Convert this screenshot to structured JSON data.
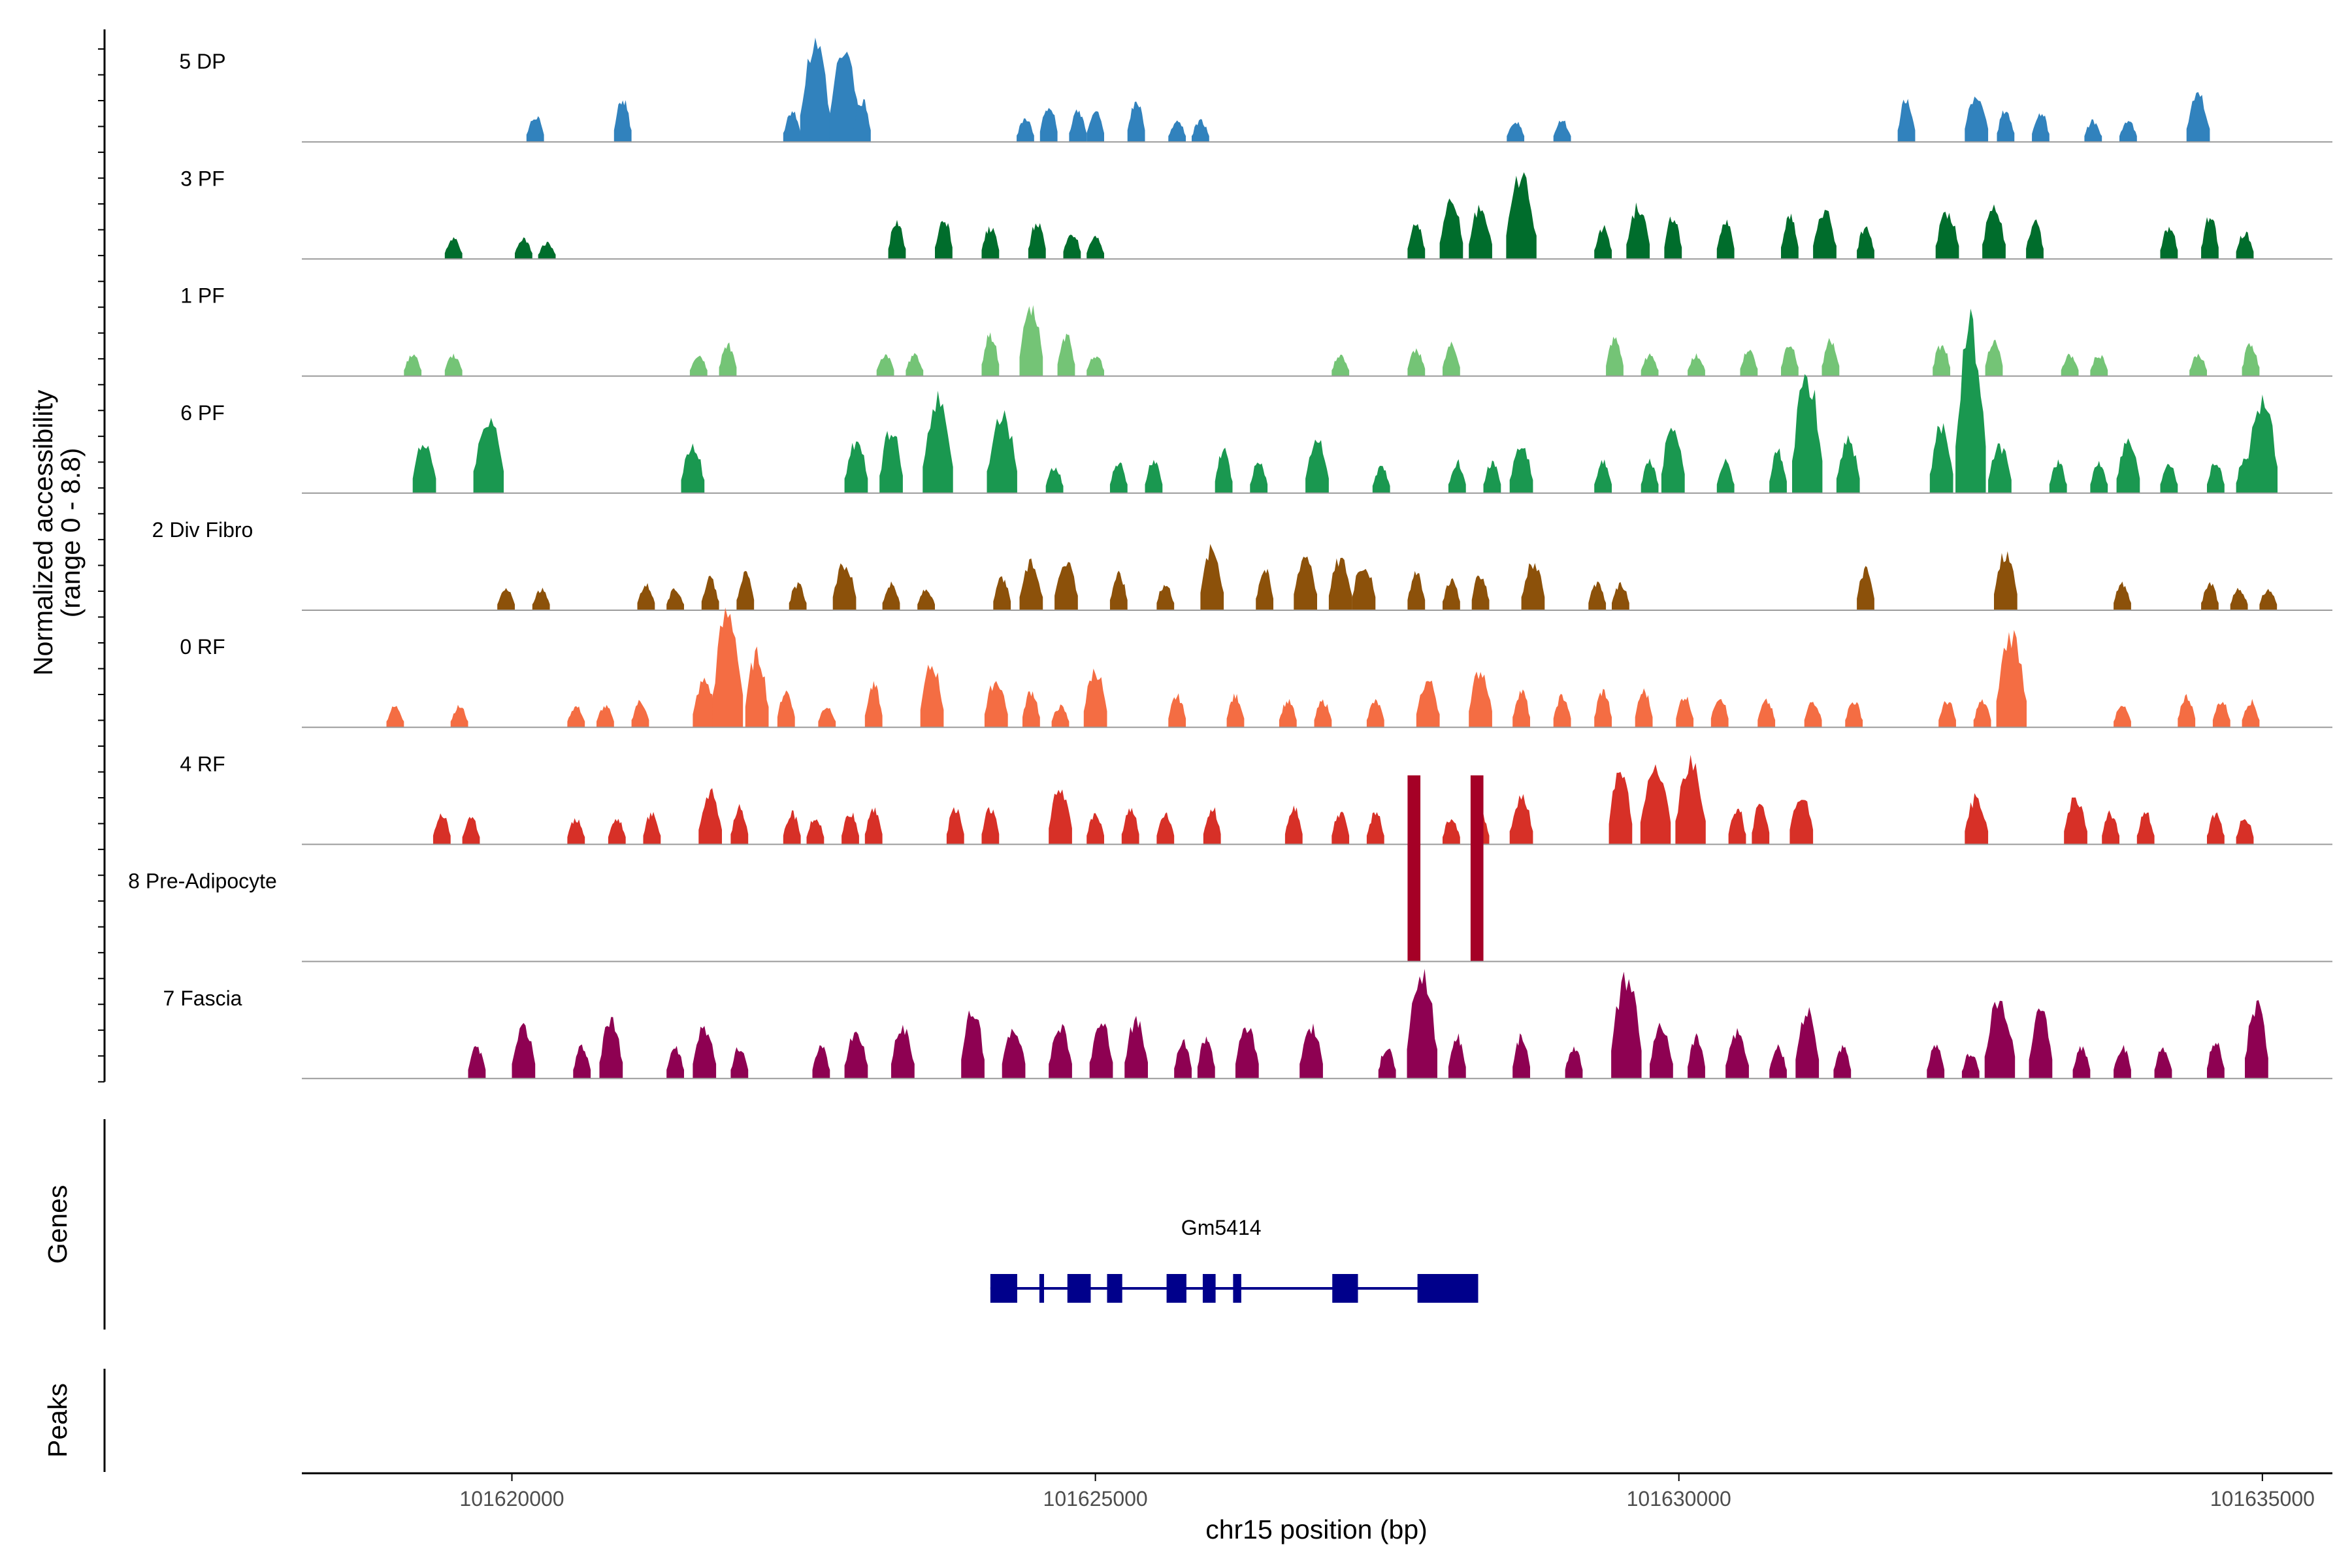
{
  "chart_data": {
    "type": "coverage",
    "ylabel_line1": "Normalized accessibility",
    "ylabel_line2": "(range 0 - 8.8)",
    "y_range": [
      0,
      8.8
    ],
    "xlabel": "chr15 position (bp)",
    "xlim": [
      101618200,
      101635600
    ],
    "xticks": [
      101620000,
      101625000,
      101630000,
      101635000
    ],
    "xtick_labels": [
      "101620000",
      "101625000",
      "101630000",
      "101635000"
    ],
    "genes_label": "Genes",
    "peaks_label": "Peaks",
    "tracks": [
      {
        "name": "5 DP",
        "color": "#3182bd",
        "peaks": [
          [
            101620200,
            0.25
          ],
          [
            101620950,
            0.4
          ],
          [
            101622400,
            0.3
          ],
          [
            101622600,
            0.9
          ],
          [
            101622850,
            0.85
          ],
          [
            101623000,
            0.4
          ],
          [
            101624400,
            0.22
          ],
          [
            101624600,
            0.35
          ],
          [
            101624850,
            0.3
          ],
          [
            101625000,
            0.3
          ],
          [
            101625350,
            0.4
          ],
          [
            101625700,
            0.2
          ],
          [
            101625900,
            0.2
          ],
          [
            101628600,
            0.2
          ],
          [
            101629000,
            0.2
          ],
          [
            101631950,
            0.4
          ],
          [
            101632550,
            0.45
          ],
          [
            101632800,
            0.3
          ],
          [
            101633100,
            0.28
          ],
          [
            101633550,
            0.2
          ],
          [
            101633850,
            0.2
          ],
          [
            101634450,
            0.45
          ]
        ]
      },
      {
        "name": "3 PF",
        "color": "#006d2c",
        "peaks": [
          [
            101619500,
            0.2
          ],
          [
            101620100,
            0.2
          ],
          [
            101620300,
            0.15
          ],
          [
            101623300,
            0.35
          ],
          [
            101623700,
            0.4
          ],
          [
            101624100,
            0.3
          ],
          [
            101624500,
            0.35
          ],
          [
            101624800,
            0.25
          ],
          [
            101625000,
            0.2
          ],
          [
            101627750,
            0.35
          ],
          [
            101628050,
            0.55
          ],
          [
            101628300,
            0.5
          ],
          [
            101628650,
            0.8
          ],
          [
            101629350,
            0.3
          ],
          [
            101629650,
            0.5
          ],
          [
            101629950,
            0.4
          ],
          [
            101630400,
            0.35
          ],
          [
            101630950,
            0.4
          ],
          [
            101631250,
            0.45
          ],
          [
            101631600,
            0.3
          ],
          [
            101632300,
            0.45
          ],
          [
            101632700,
            0.5
          ],
          [
            101633050,
            0.35
          ],
          [
            101634200,
            0.3
          ],
          [
            101634550,
            0.4
          ],
          [
            101634850,
            0.25
          ]
        ]
      },
      {
        "name": "1 PF",
        "color": "#74c476",
        "peaks": [
          [
            101619150,
            0.2
          ],
          [
            101619500,
            0.2
          ],
          [
            101621600,
            0.2
          ],
          [
            101621850,
            0.3
          ],
          [
            101623200,
            0.2
          ],
          [
            101623450,
            0.2
          ],
          [
            101624100,
            0.4
          ],
          [
            101624450,
            0.65
          ],
          [
            101624750,
            0.4
          ],
          [
            101625000,
            0.2
          ],
          [
            101627100,
            0.2
          ],
          [
            101627750,
            0.25
          ],
          [
            101628050,
            0.3
          ],
          [
            101629450,
            0.35
          ],
          [
            101629750,
            0.2
          ],
          [
            101630150,
            0.2
          ],
          [
            101630600,
            0.25
          ],
          [
            101630950,
            0.3
          ],
          [
            101631300,
            0.35
          ],
          [
            101632250,
            0.3
          ],
          [
            101632700,
            0.35
          ],
          [
            101633350,
            0.2
          ],
          [
            101633600,
            0.2
          ],
          [
            101634450,
            0.2
          ],
          [
            101634900,
            0.3
          ]
        ]
      },
      {
        "name": "6 PF",
        "color": "#1a9850",
        "peaks": [
          [
            101619250,
            0.5
          ],
          [
            101619800,
            0.75
          ],
          [
            101621550,
            0.45
          ],
          [
            101622950,
            0.5
          ],
          [
            101623250,
            0.6
          ],
          [
            101623650,
            0.9
          ],
          [
            101624200,
            0.75
          ],
          [
            101624650,
            0.25
          ],
          [
            101625200,
            0.3
          ],
          [
            101625500,
            0.3
          ],
          [
            101626100,
            0.4
          ],
          [
            101626400,
            0.3
          ],
          [
            101626900,
            0.5
          ],
          [
            101627450,
            0.25
          ],
          [
            101628100,
            0.3
          ],
          [
            101628400,
            0.3
          ],
          [
            101628650,
            0.45
          ],
          [
            101629350,
            0.3
          ],
          [
            101629750,
            0.3
          ],
          [
            101629950,
            0.65
          ],
          [
            101630400,
            0.3
          ],
          [
            101630850,
            0.4
          ],
          [
            101631100,
            1.1
          ],
          [
            101631450,
            0.5
          ],
          [
            101632250,
            0.65
          ],
          [
            101632500,
            1.6
          ],
          [
            101632750,
            0.45
          ],
          [
            101633250,
            0.3
          ],
          [
            101633600,
            0.3
          ],
          [
            101633850,
            0.5
          ],
          [
            101634200,
            0.3
          ],
          [
            101634600,
            0.3
          ],
          [
            101634850,
            0.35
          ],
          [
            101635000,
            0.9
          ]
        ]
      },
      {
        "name": "2 Div Fibro",
        "color": "#8c510a",
        "peaks": [
          [
            101619950,
            0.2
          ],
          [
            101620250,
            0.2
          ],
          [
            101621150,
            0.25
          ],
          [
            101621400,
            0.2
          ],
          [
            101621700,
            0.3
          ],
          [
            101622000,
            0.35
          ],
          [
            101622450,
            0.25
          ],
          [
            101622850,
            0.45
          ],
          [
            101623250,
            0.25
          ],
          [
            101623550,
            0.2
          ],
          [
            101624200,
            0.3
          ],
          [
            101624450,
            0.45
          ],
          [
            101624750,
            0.5
          ],
          [
            101625200,
            0.35
          ],
          [
            101625600,
            0.25
          ],
          [
            101626000,
            0.6
          ],
          [
            101626450,
            0.4
          ],
          [
            101626800,
            0.55
          ],
          [
            101627100,
            0.5
          ],
          [
            101627300,
            0.45
          ],
          [
            101627750,
            0.35
          ],
          [
            101628050,
            0.3
          ],
          [
            101628300,
            0.35
          ],
          [
            101628750,
            0.45
          ],
          [
            101629300,
            0.25
          ],
          [
            101629500,
            0.25
          ],
          [
            101631600,
            0.4
          ],
          [
            101632800,
            0.55
          ],
          [
            101633800,
            0.25
          ],
          [
            101634550,
            0.25
          ],
          [
            101634800,
            0.2
          ],
          [
            101635050,
            0.2
          ]
        ]
      },
      {
        "name": "0 RF",
        "color": "#f46d43",
        "peaks": [
          [
            101619000,
            0.2
          ],
          [
            101619550,
            0.2
          ],
          [
            101620550,
            0.2
          ],
          [
            101620800,
            0.2
          ],
          [
            101621100,
            0.25
          ],
          [
            101621650,
            0.45
          ],
          [
            101621850,
            1.1
          ],
          [
            101622100,
            0.7
          ],
          [
            101622350,
            0.35
          ],
          [
            101622700,
            0.2
          ],
          [
            101623100,
            0.4
          ],
          [
            101623600,
            0.6
          ],
          [
            101624150,
            0.45
          ],
          [
            101624450,
            0.35
          ],
          [
            101624700,
            0.2
          ],
          [
            101625000,
            0.55
          ],
          [
            101625700,
            0.3
          ],
          [
            101626200,
            0.3
          ],
          [
            101626650,
            0.25
          ],
          [
            101626950,
            0.25
          ],
          [
            101627400,
            0.25
          ],
          [
            101627850,
            0.45
          ],
          [
            101628300,
            0.55
          ],
          [
            101628650,
            0.35
          ],
          [
            101629000,
            0.3
          ],
          [
            101629350,
            0.35
          ],
          [
            101629700,
            0.35
          ],
          [
            101630050,
            0.3
          ],
          [
            101630350,
            0.3
          ],
          [
            101630750,
            0.25
          ],
          [
            101631150,
            0.25
          ],
          [
            101631500,
            0.25
          ],
          [
            101632300,
            0.25
          ],
          [
            101632600,
            0.25
          ],
          [
            101632850,
            0.9
          ],
          [
            101633800,
            0.2
          ],
          [
            101634350,
            0.3
          ],
          [
            101634650,
            0.25
          ],
          [
            101634900,
            0.25
          ]
        ]
      },
      {
        "name": "4 RF",
        "color": "#d73027",
        "peaks": [
          [
            101619400,
            0.3
          ],
          [
            101619650,
            0.25
          ],
          [
            101620550,
            0.25
          ],
          [
            101620900,
            0.25
          ],
          [
            101621200,
            0.3
          ],
          [
            101621700,
            0.5
          ],
          [
            101621950,
            0.35
          ],
          [
            101622400,
            0.3
          ],
          [
            101622600,
            0.25
          ],
          [
            101622900,
            0.3
          ],
          [
            101623100,
            0.35
          ],
          [
            101623800,
            0.35
          ],
          [
            101624100,
            0.35
          ],
          [
            101624700,
            0.55
          ],
          [
            101625000,
            0.3
          ],
          [
            101625300,
            0.35
          ],
          [
            101625600,
            0.3
          ],
          [
            101626000,
            0.35
          ],
          [
            101626700,
            0.35
          ],
          [
            101627100,
            0.3
          ],
          [
            101627400,
            0.3
          ],
          [
            101628050,
            0.25
          ],
          [
            101628300,
            0.3
          ],
          [
            101628650,
            0.45
          ],
          [
            101629500,
            0.7
          ],
          [
            101629800,
            0.75
          ],
          [
            101630100,
            0.8
          ],
          [
            101630500,
            0.35
          ],
          [
            101630700,
            0.4
          ],
          [
            101631050,
            0.5
          ],
          [
            101632550,
            0.45
          ],
          [
            101633400,
            0.45
          ],
          [
            101633700,
            0.3
          ],
          [
            101634000,
            0.3
          ],
          [
            101634600,
            0.3
          ],
          [
            101634850,
            0.25
          ]
        ]
      },
      {
        "name": "8 Pre-Adipocyte",
        "color": "#a50026",
        "peaks": [
          [
            101627730,
            1.6
          ],
          [
            101628270,
            1.6
          ]
        ]
      },
      {
        "name": "7 Fascia",
        "color": "#8e0152",
        "peaks": [
          [
            101619700,
            0.3
          ],
          [
            101620100,
            0.5
          ],
          [
            101620600,
            0.3
          ],
          [
            101620850,
            0.55
          ],
          [
            101621400,
            0.3
          ],
          [
            101621650,
            0.5
          ],
          [
            101621950,
            0.3
          ],
          [
            101622650,
            0.3
          ],
          [
            101622950,
            0.45
          ],
          [
            101623350,
            0.5
          ],
          [
            101623950,
            0.65
          ],
          [
            101624300,
            0.5
          ],
          [
            101624700,
            0.5
          ],
          [
            101625050,
            0.55
          ],
          [
            101625350,
            0.55
          ],
          [
            101625750,
            0.35
          ],
          [
            101625950,
            0.4
          ],
          [
            101626300,
            0.5
          ],
          [
            101626850,
            0.5
          ],
          [
            101627500,
            0.3
          ],
          [
            101627800,
            1.0
          ],
          [
            101628100,
            0.4
          ],
          [
            101628650,
            0.4
          ],
          [
            101629100,
            0.3
          ],
          [
            101629550,
            0.95
          ],
          [
            101629850,
            0.5
          ],
          [
            101630150,
            0.4
          ],
          [
            101630500,
            0.45
          ],
          [
            101630850,
            0.3
          ],
          [
            101631100,
            0.65
          ],
          [
            101631400,
            0.3
          ],
          [
            101632200,
            0.3
          ],
          [
            101632500,
            0.25
          ],
          [
            101632750,
            0.75
          ],
          [
            101633100,
            0.65
          ],
          [
            101633450,
            0.3
          ],
          [
            101633800,
            0.3
          ],
          [
            101634150,
            0.3
          ],
          [
            101634600,
            0.35
          ],
          [
            101634950,
            0.7
          ]
        ]
      }
    ],
    "gene": {
      "name": "Gm5414",
      "color": "#00008b",
      "start": 101624100,
      "end": 101628280,
      "exons": [
        [
          101624100,
          101624330
        ],
        [
          101624520,
          101624560
        ],
        [
          101624760,
          101624960
        ],
        [
          101625100,
          101625230
        ],
        [
          101625610,
          101625780
        ],
        [
          101625920,
          101626030
        ],
        [
          101626180,
          101626250
        ],
        [
          101627030,
          101627250
        ],
        [
          101627760,
          101628280
        ]
      ]
    }
  }
}
